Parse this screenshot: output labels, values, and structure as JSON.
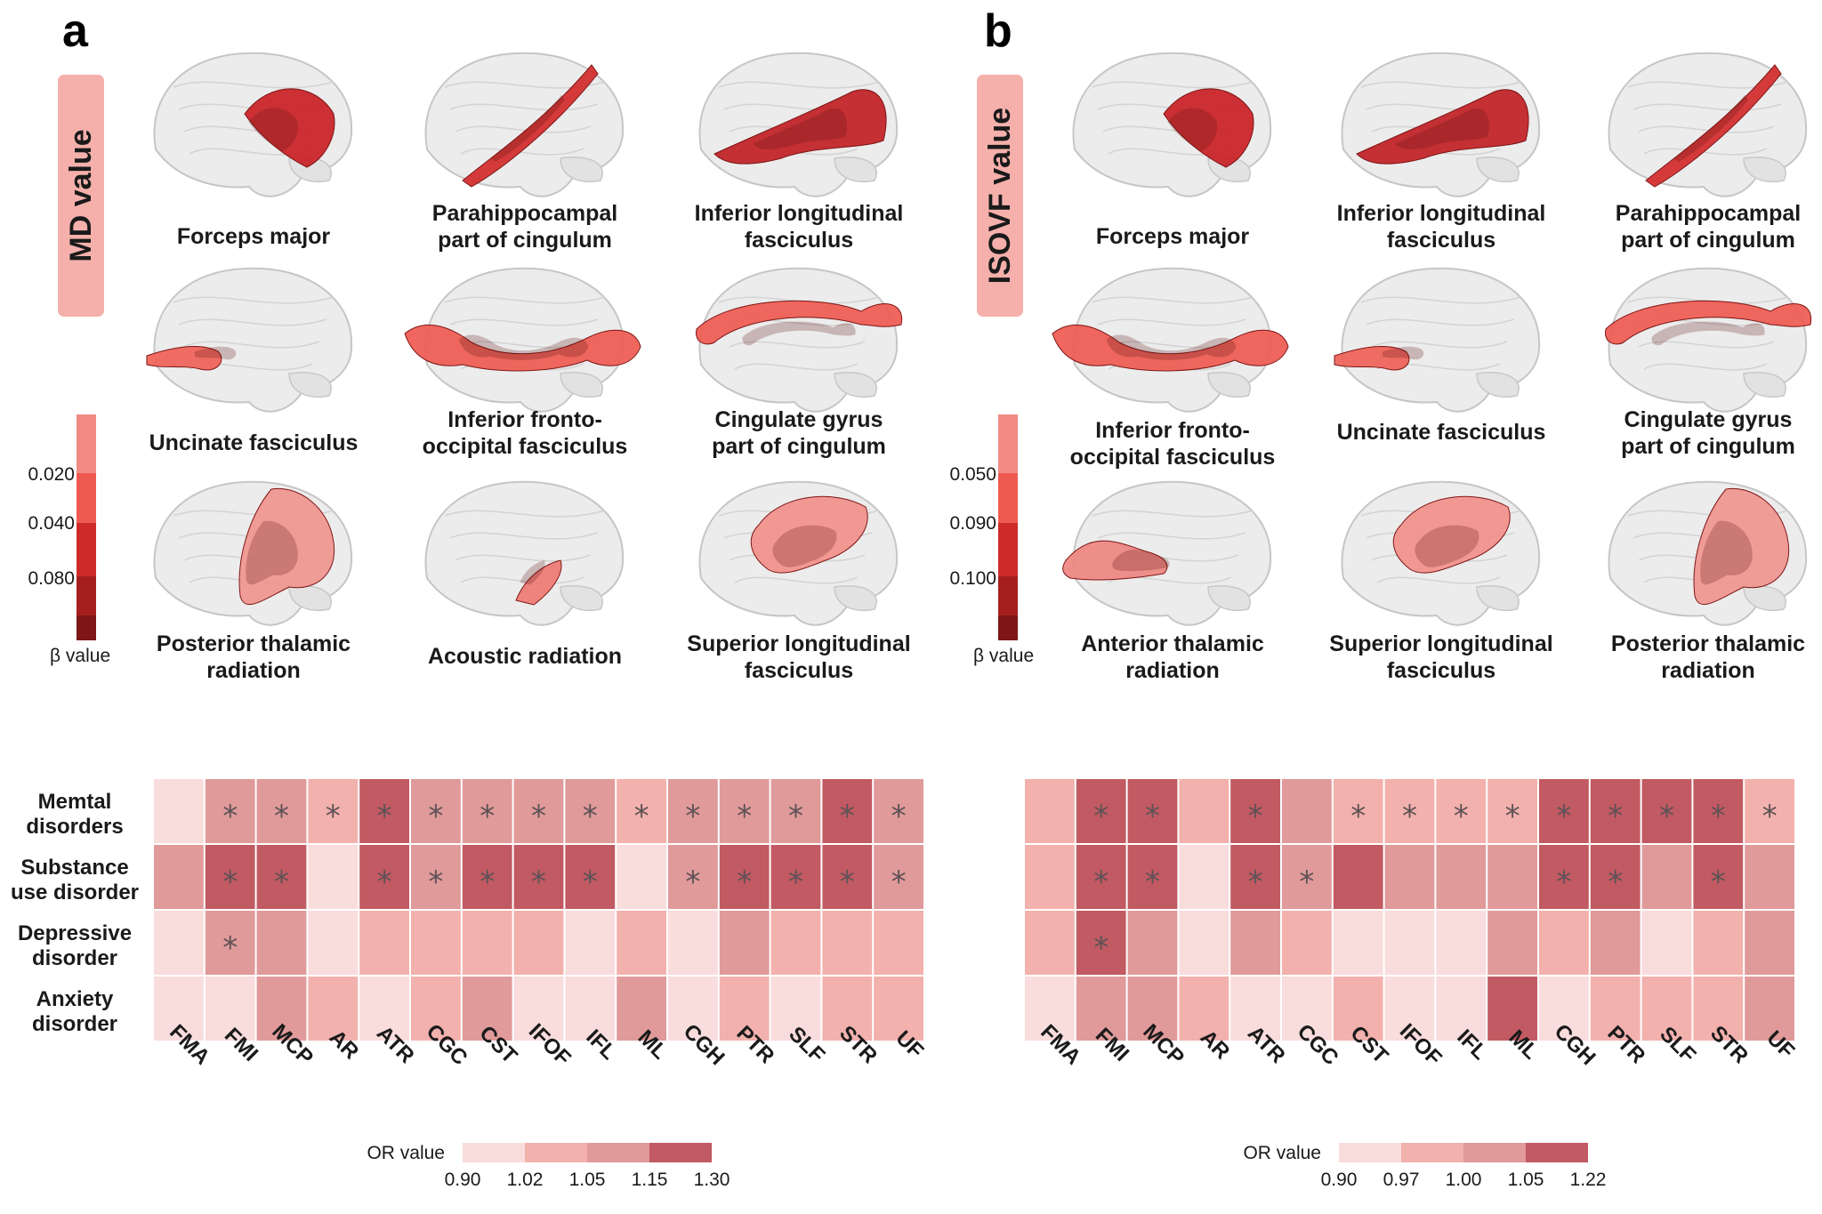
{
  "panels": [
    {
      "label": "a",
      "metric": "MD value",
      "beta_scale": {
        "ticks": [
          "0.020",
          "0.040",
          "0.080"
        ],
        "label": "β value"
      },
      "tracts": [
        "Forceps major",
        [
          "Parahippocampal",
          "part of cingulum"
        ],
        [
          "Inferior longitudinal",
          "fasciculus"
        ],
        "Uncinate fasciculus",
        [
          "Inferior fronto-",
          "occipital fasciculus"
        ],
        [
          "Cingulate gyrus",
          "part of cingulum"
        ],
        [
          "Posterior thalamic",
          "radiation"
        ],
        "Acoustic radiation",
        [
          "Superior longitudinal",
          "fasciculus"
        ]
      ]
    },
    {
      "label": "b",
      "metric": "ISOVF value",
      "beta_scale": {
        "ticks": [
          "0.050",
          "0.090",
          "0.100"
        ],
        "label": "β value"
      },
      "tracts": [
        "Forceps major",
        [
          "Inferior longitudinal",
          "fasciculus"
        ],
        [
          "Parahippocampal",
          "part of cingulum"
        ],
        [
          "Inferior fronto-",
          "occipital fasciculus"
        ],
        "Uncinate fasciculus",
        [
          "Cingulate gyrus",
          "part of cingulum"
        ],
        [
          "Anterior thalamic",
          "radiation"
        ],
        [
          "Superior longitudinal",
          "fasciculus"
        ],
        [
          "Posterior thalamic",
          "radiation"
        ]
      ]
    }
  ],
  "colors": {
    "beta_scale": [
      "#f28a84",
      "#ee5a52",
      "#cf2a2a",
      "#a51f1f",
      "#7e1616"
    ],
    "or_scale": [
      "#f9dcdc",
      "#f2b1ad",
      "#e09a9a",
      "#c15a62"
    ],
    "metric_box": "#f5b0ab",
    "tract_red": "#c91f24",
    "tract_salmon": "#ee6157",
    "tract_pink": "#f2a19a"
  },
  "chart_data": [
    {
      "type": "heatmap",
      "title": "",
      "categories": [
        "FMA",
        "FMI",
        "MCP",
        "AR",
        "ATR",
        "CGC",
        "CST",
        "IFOF",
        "IFL",
        "ML",
        "CGH",
        "PTR",
        "SLF",
        "STR",
        "UF"
      ],
      "rows": [
        {
          "name": [
            "Memtal",
            "disorders"
          ],
          "levels": [
            0,
            2,
            2,
            1,
            3,
            2,
            2,
            2,
            2,
            1,
            2,
            2,
            2,
            3,
            2
          ],
          "significant": [
            0,
            1,
            1,
            1,
            1,
            1,
            1,
            1,
            1,
            1,
            1,
            1,
            1,
            1,
            1
          ]
        },
        {
          "name": [
            "Substance",
            "use disorder"
          ],
          "levels": [
            2,
            3,
            3,
            0,
            3,
            2,
            3,
            3,
            3,
            0,
            2,
            3,
            3,
            3,
            2
          ],
          "significant": [
            0,
            1,
            1,
            0,
            1,
            1,
            1,
            1,
            1,
            0,
            1,
            1,
            1,
            1,
            1
          ]
        },
        {
          "name": [
            "Depressive",
            "disorder"
          ],
          "levels": [
            0,
            2,
            2,
            0,
            1,
            1,
            1,
            1,
            0,
            1,
            0,
            2,
            1,
            1,
            1
          ],
          "significant": [
            0,
            1,
            0,
            0,
            0,
            0,
            0,
            0,
            0,
            0,
            0,
            0,
            0,
            0,
            0
          ]
        },
        {
          "name": [
            "Anxiety",
            "disorder"
          ],
          "levels": [
            0,
            0,
            2,
            1,
            0,
            1,
            2,
            0,
            0,
            2,
            0,
            1,
            0,
            1,
            1
          ],
          "significant": [
            0,
            0,
            0,
            0,
            0,
            0,
            0,
            0,
            0,
            0,
            0,
            0,
            0,
            0,
            0
          ]
        }
      ],
      "legend": {
        "title": "OR value",
        "ticks": [
          "0.90",
          "1.02",
          "1.05",
          "1.15",
          "1.30"
        ]
      }
    },
    {
      "type": "heatmap",
      "title": "",
      "categories": [
        "FMA",
        "FMI",
        "MCP",
        "AR",
        "ATR",
        "CGC",
        "CST",
        "IFOF",
        "IFL",
        "ML",
        "CGH",
        "PTR",
        "SLF",
        "STR",
        "UF"
      ],
      "rows": [
        {
          "name": [
            "Memtal",
            "disorders"
          ],
          "levels": [
            1,
            3,
            3,
            1,
            3,
            2,
            1,
            1,
            1,
            1,
            3,
            3,
            3,
            3,
            1
          ],
          "significant": [
            0,
            1,
            1,
            0,
            1,
            0,
            1,
            1,
            1,
            1,
            1,
            1,
            1,
            1,
            1
          ]
        },
        {
          "name": [
            "Substance",
            "use disorder"
          ],
          "levels": [
            1,
            3,
            3,
            0,
            3,
            2,
            3,
            2,
            2,
            2,
            3,
            3,
            2,
            3,
            2
          ],
          "significant": [
            0,
            1,
            1,
            0,
            1,
            1,
            0,
            0,
            0,
            0,
            1,
            1,
            0,
            1,
            0
          ]
        },
        {
          "name": [
            "Depressive",
            "disorder"
          ],
          "levels": [
            1,
            3,
            2,
            0,
            2,
            1,
            0,
            0,
            0,
            2,
            1,
            2,
            0,
            1,
            2
          ],
          "significant": [
            0,
            1,
            0,
            0,
            0,
            0,
            0,
            0,
            0,
            0,
            0,
            0,
            0,
            0,
            0
          ]
        },
        {
          "name": [
            "Anxiety",
            "disorder"
          ],
          "levels": [
            0,
            2,
            2,
            1,
            0,
            0,
            1,
            0,
            0,
            3,
            0,
            1,
            1,
            1,
            2
          ],
          "significant": [
            0,
            0,
            0,
            0,
            0,
            0,
            0,
            0,
            0,
            0,
            0,
            0,
            0,
            0,
            0
          ]
        }
      ],
      "legend": {
        "title": "OR value",
        "ticks": [
          "0.90",
          "0.97",
          "1.00",
          "1.05",
          "1.22"
        ]
      }
    }
  ],
  "star_symbol": "*"
}
